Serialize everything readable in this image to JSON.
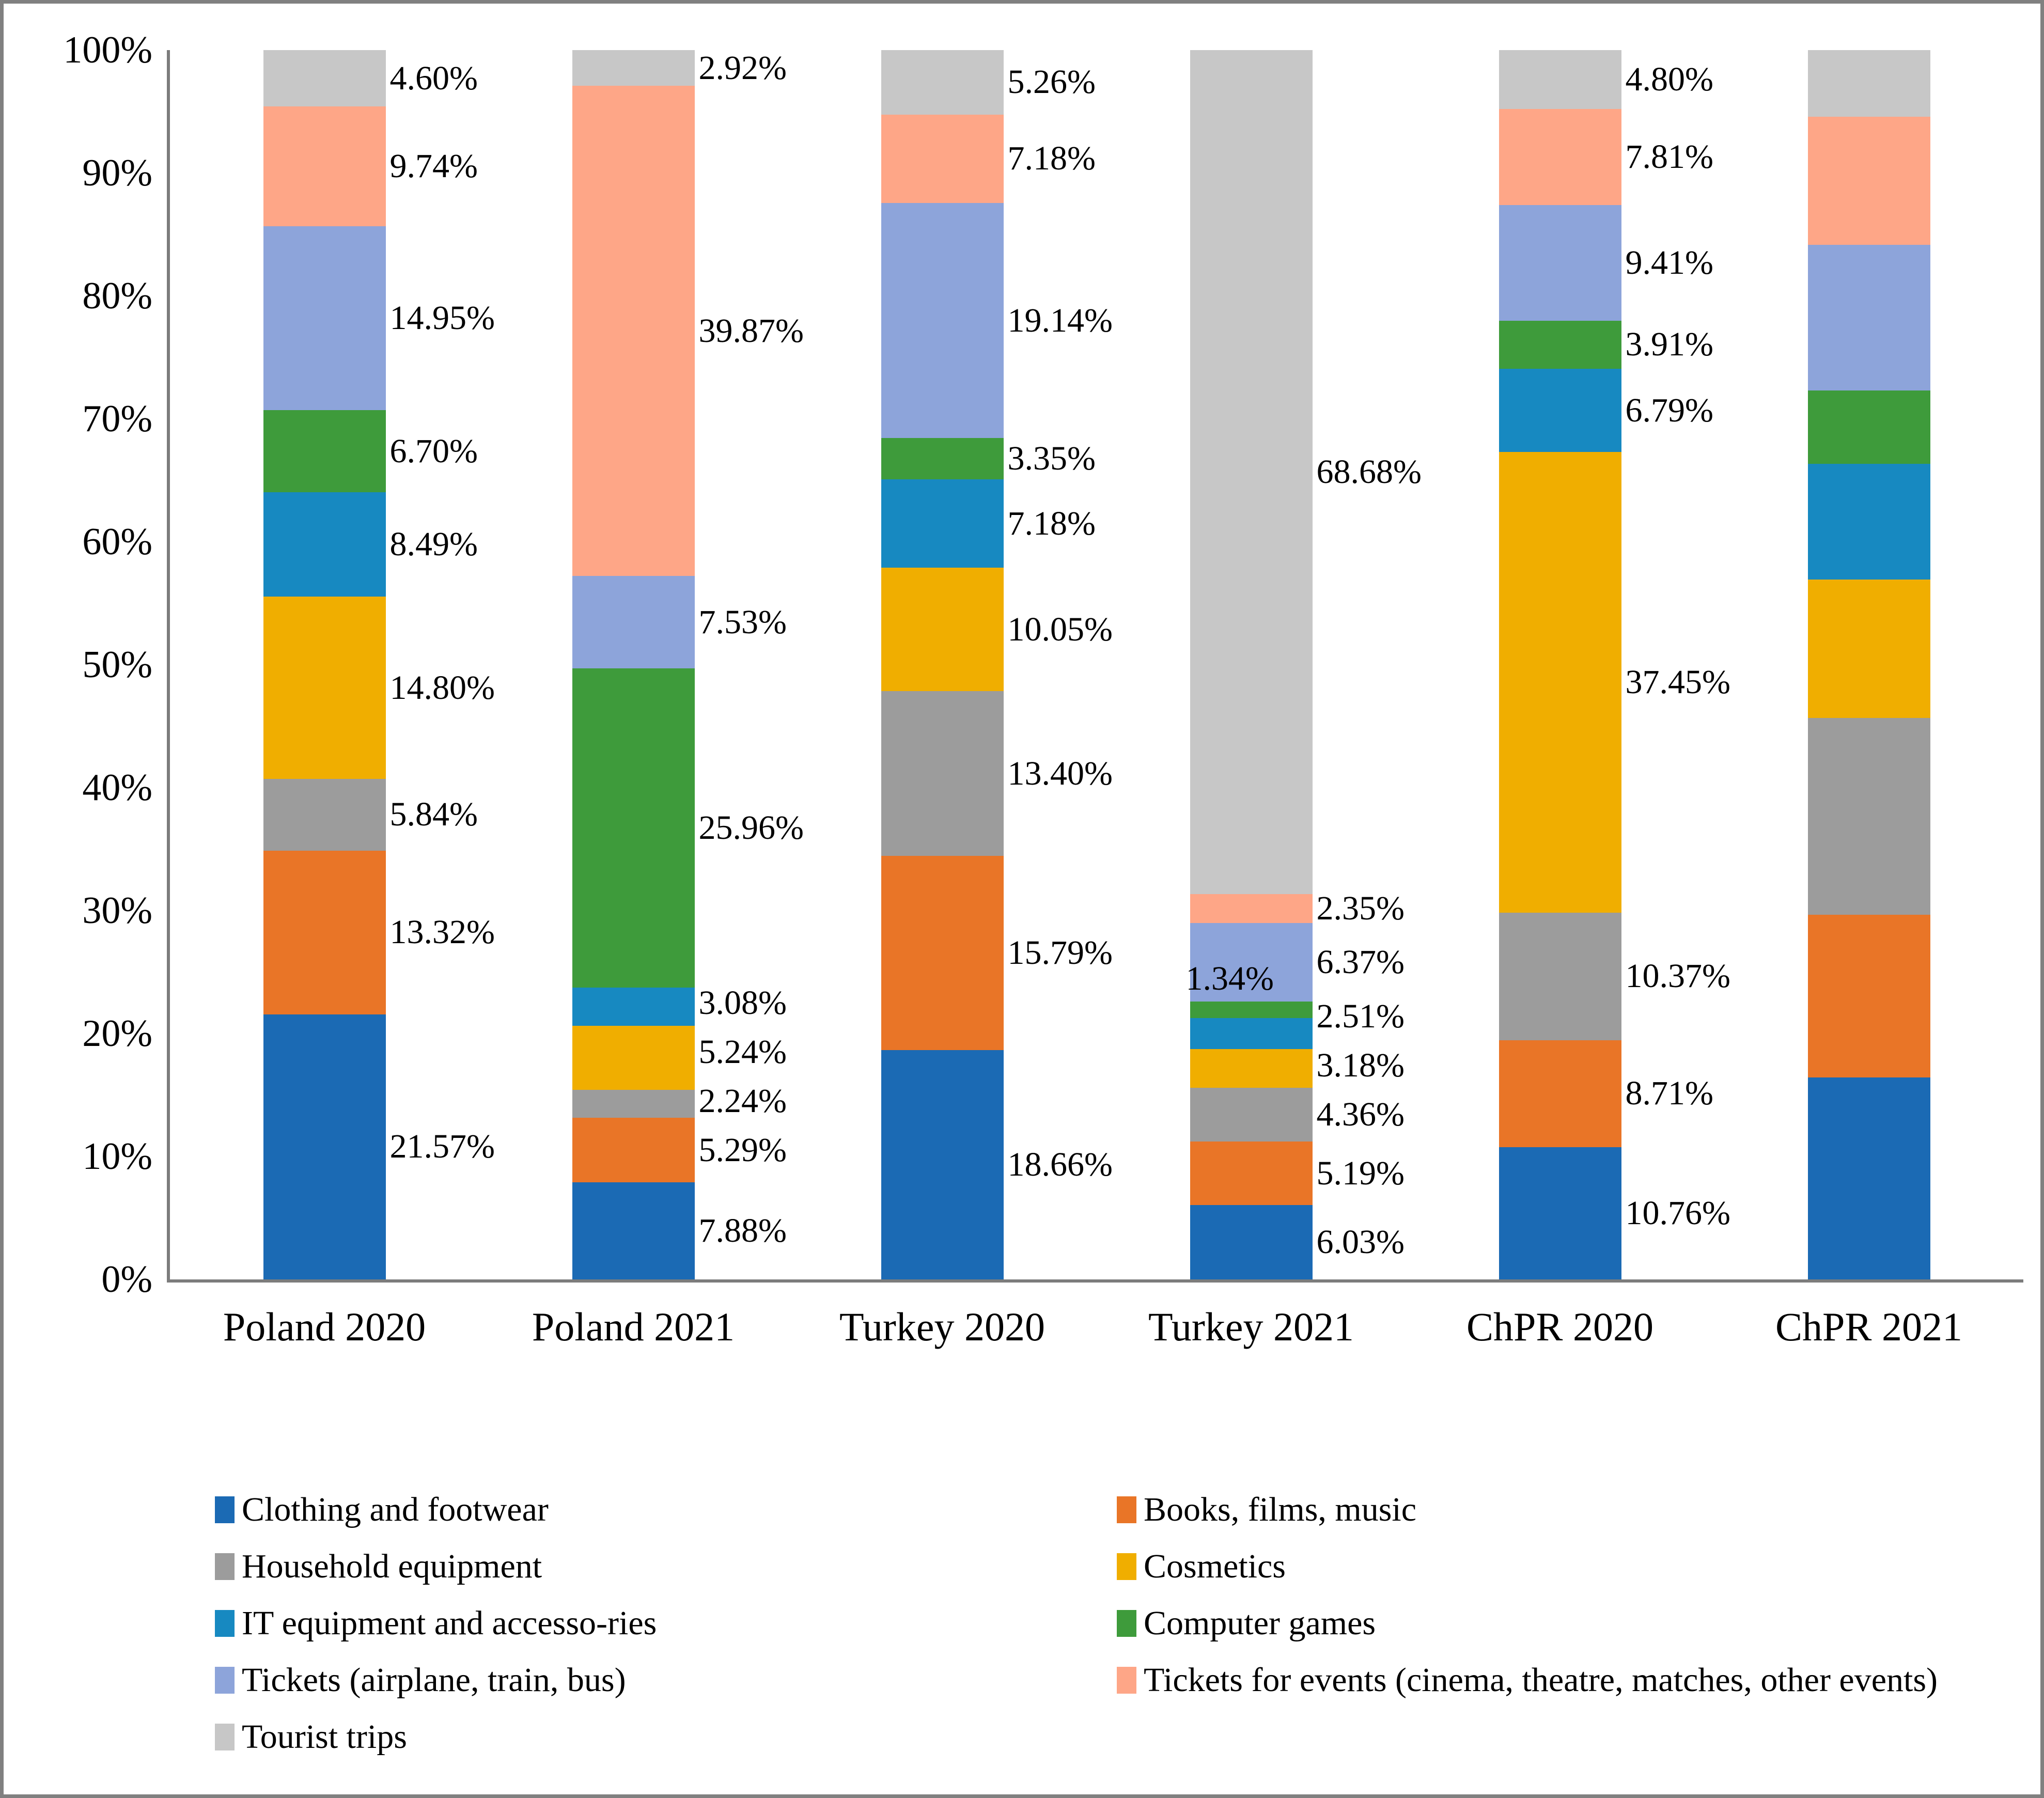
{
  "chart_data": {
    "type": "bar",
    "variant": "stacked-100-percent-column",
    "title": "",
    "xlabel": "",
    "ylabel": "",
    "ylim": [
      0,
      100
    ],
    "grid": false,
    "legend_position": "bottom-two-columns",
    "yticks": [
      "0%",
      "10%",
      "20%",
      "30%",
      "40%",
      "50%",
      "60%",
      "70%",
      "80%",
      "90%",
      "100%"
    ],
    "categories": [
      "Poland 2020",
      "Poland 2021",
      "Turkey 2020",
      "Turkey 2021",
      "ChPR 2020",
      "ChPR 2021"
    ],
    "series": [
      {
        "name": "Clothing and footwear",
        "color": "#1B6AB4",
        "values": [
          21.57,
          7.88,
          18.66,
          6.03,
          10.76,
          16.42
        ]
      },
      {
        "name": "Books, films, music",
        "color": "#E97527",
        "values": [
          13.32,
          5.29,
          15.79,
          5.19,
          8.71,
          13.23
        ]
      },
      {
        "name": "Household equipment",
        "color": "#9C9C9C",
        "values": [
          5.84,
          2.24,
          13.4,
          4.36,
          10.37,
          16.04
        ]
      },
      {
        "name": "Cosmetics",
        "color": "#F0AE00",
        "values": [
          14.8,
          5.24,
          10.05,
          3.18,
          37.45,
          11.26
        ]
      },
      {
        "name": "IT equipment and accesso-ries",
        "color": "#1789C1",
        "values": [
          8.49,
          3.08,
          7.18,
          2.51,
          6.79,
          9.38
        ]
      },
      {
        "name": "Computer games",
        "color": "#3E9B3B",
        "values": [
          6.7,
          25.96,
          3.35,
          1.34,
          3.91,
          6.0
        ]
      },
      {
        "name": "Tickets (airplane, train, bus)",
        "color": "#8DA4DA",
        "values": [
          14.95,
          7.53,
          19.14,
          6.37,
          9.41,
          11.82
        ]
      },
      {
        "name": "Tickets for events (cinema, theatre, matches, other events)",
        "color": "#FEA687",
        "values": [
          9.74,
          39.87,
          7.18,
          2.35,
          7.81,
          10.41
        ]
      },
      {
        "name": "Tourist trips",
        "color": "#C7C7C7",
        "values": [
          4.6,
          2.92,
          5.26,
          68.68,
          4.8,
          5.44
        ]
      }
    ],
    "data_label_format": "0.00%",
    "special_labels": [
      {
        "series": "Computer games",
        "category": "Turkey 2021",
        "placement": "left"
      }
    ]
  }
}
